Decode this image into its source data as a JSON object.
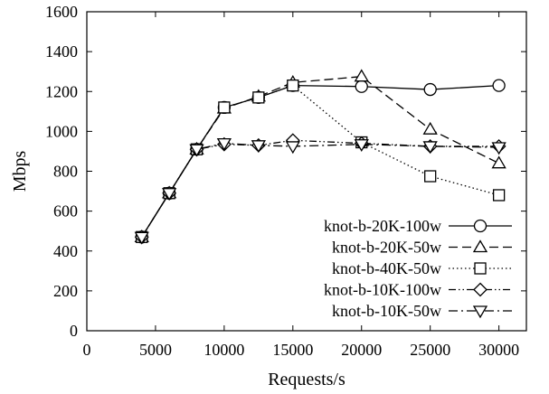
{
  "chart_data": {
    "type": "line",
    "title": "",
    "xlabel": "Requests/s",
    "ylabel": "Mbps",
    "xlim": [
      0,
      32000
    ],
    "ylim": [
      0,
      1600
    ],
    "xticks": [
      0,
      5000,
      10000,
      15000,
      20000,
      25000,
      30000
    ],
    "yticks": [
      0,
      200,
      400,
      600,
      800,
      1000,
      1200,
      1400,
      1600
    ],
    "grid": false,
    "legend_position": "bottom-right",
    "series": [
      {
        "name": "knot-b-20K-100w",
        "marker": "circle",
        "line_style": "solid",
        "x": [
          4000,
          6000,
          8000,
          10000,
          12500,
          15000,
          20000,
          25000,
          30000
        ],
        "y": [
          470,
          690,
          910,
          1120,
          1170,
          1230,
          1225,
          1210,
          1230
        ]
      },
      {
        "name": "knot-b-20K-50w",
        "marker": "triangle-up",
        "line_style": "dashed",
        "x": [
          4000,
          6000,
          8000,
          10000,
          12500,
          15000,
          20000,
          25000,
          30000
        ],
        "y": [
          470,
          690,
          910,
          1115,
          1175,
          1245,
          1275,
          1010,
          840
        ]
      },
      {
        "name": "knot-b-40K-50w",
        "marker": "square",
        "line_style": "dotted",
        "x": [
          4000,
          6000,
          8000,
          10000,
          12500,
          15000,
          20000,
          25000,
          30000
        ],
        "y": [
          470,
          690,
          910,
          1120,
          1170,
          1230,
          945,
          775,
          680
        ]
      },
      {
        "name": "knot-b-10K-100w",
        "marker": "diamond",
        "line_style": "dash-dot-dot",
        "x": [
          4000,
          6000,
          8000,
          10000,
          12500,
          15000,
          20000,
          25000,
          30000
        ],
        "y": [
          470,
          690,
          910,
          935,
          930,
          955,
          940,
          925,
          925
        ]
      },
      {
        "name": "knot-b-10K-50w",
        "marker": "triangle-down",
        "line_style": "dash-dot",
        "x": [
          4000,
          6000,
          8000,
          10000,
          12500,
          15000,
          20000,
          25000,
          30000
        ],
        "y": [
          470,
          690,
          910,
          940,
          930,
          925,
          935,
          925,
          920
        ]
      }
    ]
  }
}
